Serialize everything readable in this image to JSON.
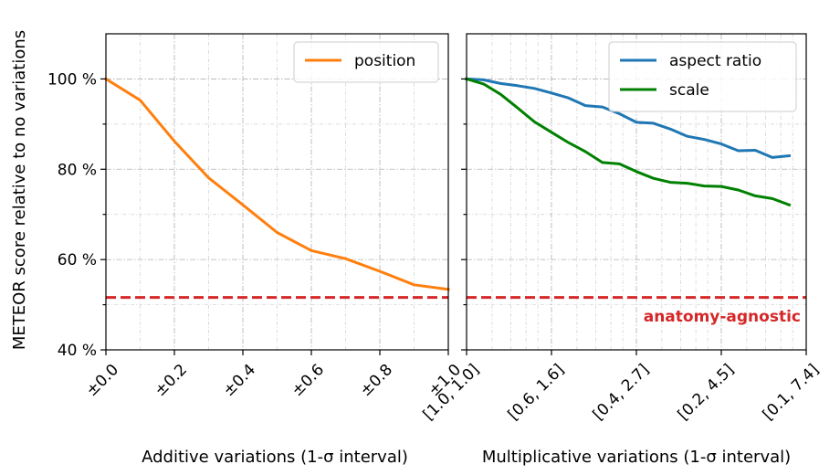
{
  "chart_data": [
    {
      "type": "line",
      "ylabel": "METEOR score relative to no variations",
      "xlabel": "Additive variations (1-σ interval)",
      "xlim": [
        0,
        1
      ],
      "ylim": [
        40,
        110
      ],
      "yticks": [
        40,
        60,
        80,
        100
      ],
      "ytick_labels": [
        "40 %",
        "60 %",
        "80 %",
        "100 %"
      ],
      "xticks": [
        0,
        0.2,
        0.4,
        0.6,
        0.8,
        1.0
      ],
      "xtick_labels": [
        "±0.0",
        "±0.2",
        "±0.4",
        "±0.6",
        "±0.8",
        "±1.0"
      ],
      "series": [
        {
          "name": "position",
          "color": "#ff7f0e",
          "x": [
            0,
            0.1,
            0.2,
            0.3,
            0.4,
            0.5,
            0.6,
            0.7,
            0.8,
            0.9,
            1.0
          ],
          "y": [
            100,
            95.3,
            86.2,
            78.1,
            72.1,
            66.0,
            62.0,
            60.2,
            57.4,
            54.4,
            53.4
          ]
        }
      ],
      "reference_line": {
        "value": 51.6,
        "color": "#d62728",
        "style": "dashed"
      },
      "legend_position": "top-right"
    },
    {
      "type": "line",
      "xlabel": "Multiplicative variations (1-σ interval)",
      "xlim": [
        0,
        20
      ],
      "ylim": [
        40,
        110
      ],
      "xticks": [
        0,
        5,
        10,
        15,
        20
      ],
      "xtick_labels": [
        "[1.0, 1.0]",
        "[0.6, 1.6]",
        "[0.4, 2.7]",
        "[0.2, 4.5]",
        "[0.1, 7.4]"
      ],
      "series": [
        {
          "name": "aspect ratio",
          "color": "#1f77b4",
          "x": [
            0,
            1,
            2,
            3,
            4,
            5,
            6,
            7,
            8,
            9,
            10,
            11,
            12,
            13,
            14,
            15,
            16,
            17,
            18,
            19
          ],
          "y": [
            100,
            99.8,
            99.0,
            98.5,
            97.9,
            96.9,
            95.8,
            94.1,
            93.8,
            92.3,
            90.4,
            90.2,
            88.9,
            87.3,
            86.6,
            85.6,
            84.1,
            84.2,
            82.6,
            83.0
          ]
        },
        {
          "name": "scale",
          "color": "#008000",
          "x": [
            0,
            1,
            2,
            3,
            4,
            5,
            6,
            7,
            8,
            9,
            10,
            11,
            12,
            13,
            14,
            15,
            16,
            17,
            18,
            19
          ],
          "y": [
            100,
            98.9,
            96.6,
            93.6,
            90.5,
            88.2,
            85.9,
            83.9,
            81.5,
            81.2,
            79.5,
            78.0,
            77.1,
            76.9,
            76.3,
            76.2,
            75.4,
            74.1,
            73.5,
            72.1
          ]
        }
      ],
      "reference_line": {
        "value": 51.6,
        "color": "#d62728",
        "style": "dashed",
        "label": "anatomy-agnostic"
      },
      "legend_position": "top-right"
    }
  ]
}
